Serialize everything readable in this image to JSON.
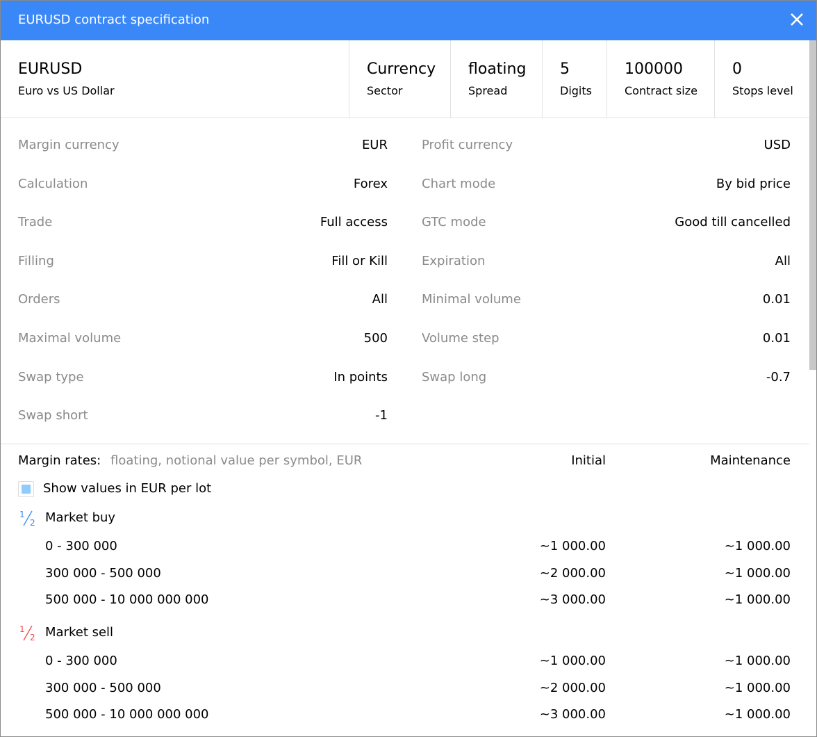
{
  "window": {
    "title": "EURUSD contract specification",
    "accent": "#3a88f8"
  },
  "header": [
    {
      "big": "EURUSD",
      "sub": "Euro vs US Dollar"
    },
    {
      "big": "Currency",
      "sub": "Sector"
    },
    {
      "big": "floating",
      "sub": "Spread"
    },
    {
      "big": "5",
      "sub": "Digits"
    },
    {
      "big": "100000",
      "sub": "Contract size"
    },
    {
      "big": "0",
      "sub": "Stops level"
    }
  ],
  "left": [
    {
      "label": "Margin currency",
      "value": "EUR"
    },
    {
      "label": "Calculation",
      "value": "Forex"
    },
    {
      "label": "Trade",
      "value": "Full access"
    },
    {
      "label": "Filling",
      "value": "Fill or Kill"
    },
    {
      "label": "Orders",
      "value": "All"
    },
    {
      "label": "Maximal volume",
      "value": "500"
    },
    {
      "label": "Swap type",
      "value": "In points"
    },
    {
      "label": "Swap short",
      "value": "-1"
    }
  ],
  "right": [
    {
      "label": "Profit currency",
      "value": "USD"
    },
    {
      "label": "Chart mode",
      "value": "By bid price"
    },
    {
      "label": "GTC mode",
      "value": "Good till cancelled"
    },
    {
      "label": "Expiration",
      "value": "All"
    },
    {
      "label": "Minimal volume",
      "value": "0.01"
    },
    {
      "label": "Volume step",
      "value": "0.01"
    },
    {
      "label": "Swap long",
      "value": "-0.7"
    }
  ],
  "margin": {
    "label": "Margin rates:",
    "desc": "floating, notional value per symbol, EUR",
    "col_initial": "Initial",
    "col_maintenance": "Maintenance",
    "checkbox_label": "Show values in EUR per lot",
    "checkbox_checked": true,
    "groups": [
      {
        "name": "Market buy",
        "icon": "fraction-icon",
        "color": "#3a88f8",
        "rows": [
          {
            "range": "0 - 300 000",
            "initial": "~1 000.00",
            "maintenance": "~1 000.00"
          },
          {
            "range": "300 000 - 500 000",
            "initial": "~2 000.00",
            "maintenance": "~1 000.00"
          },
          {
            "range": "500 000 - 10 000 000 000",
            "initial": "~3 000.00",
            "maintenance": "~1 000.00"
          }
        ]
      },
      {
        "name": "Market sell",
        "icon": "fraction-icon",
        "color": "#f04848",
        "rows": [
          {
            "range": "0 - 300 000",
            "initial": "~1 000.00",
            "maintenance": "~1 000.00"
          },
          {
            "range": "300 000 - 500 000",
            "initial": "~2 000.00",
            "maintenance": "~1 000.00"
          },
          {
            "range": "500 000 - 10 000 000 000",
            "initial": "~3 000.00",
            "maintenance": "~1 000.00"
          }
        ]
      }
    ]
  }
}
